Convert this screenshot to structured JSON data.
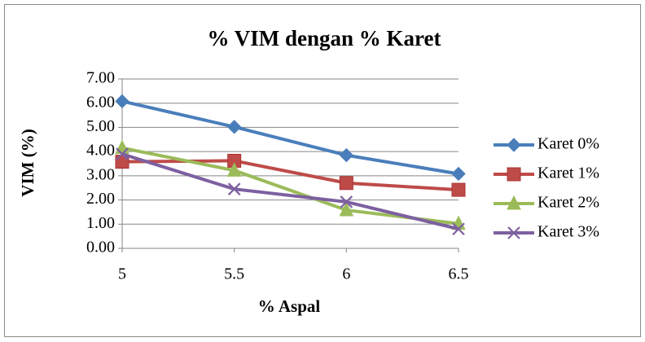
{
  "chart_data": {
    "type": "line",
    "title": "% VIM dengan % Karet",
    "x_label": "% Aspal",
    "y_label": "VIM (%)",
    "x": [
      5,
      5.5,
      6,
      6.5
    ],
    "xlim": [
      5,
      6.5
    ],
    "xticks": [
      5,
      5.5,
      6,
      6.5
    ],
    "ylim": [
      0,
      7
    ],
    "yticks": [
      {
        "value": 0,
        "label": "0.00"
      },
      {
        "value": 1,
        "label": "1.00"
      },
      {
        "value": 2,
        "label": "2.00"
      },
      {
        "value": 3,
        "label": "3.00"
      },
      {
        "value": 4,
        "label": "4.00"
      },
      {
        "value": 5,
        "label": "5.00"
      },
      {
        "value": 6,
        "label": "6.00"
      },
      {
        "value": 7,
        "label": "7.00"
      }
    ],
    "grid": true,
    "legend": "right",
    "series": [
      {
        "name": "Karet 0%",
        "color": "#4a7ebb",
        "marker": "diamond",
        "values": [
          6.08,
          5.02,
          3.85,
          3.08
        ]
      },
      {
        "name": "Karet 1%",
        "color": "#be4b48",
        "marker": "square",
        "values": [
          3.58,
          3.62,
          2.7,
          2.42
        ]
      },
      {
        "name": "Karet 2%",
        "color": "#9bbb59",
        "marker": "triangle",
        "values": [
          4.15,
          3.22,
          1.58,
          1.02
        ]
      },
      {
        "name": "Karet 3%",
        "color": "#7d60a0",
        "marker": "x",
        "values": [
          3.9,
          2.45,
          1.92,
          0.8
        ]
      }
    ]
  }
}
